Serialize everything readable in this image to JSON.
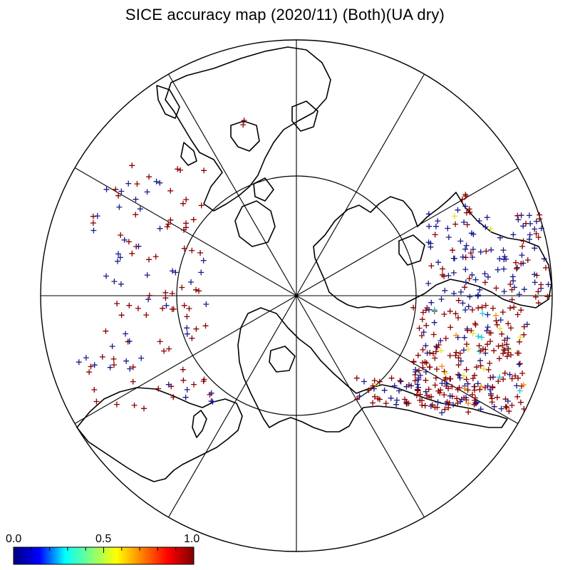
{
  "title": "SICE accuracy map (2020/11) (Both)(UA dry)",
  "colorbar": {
    "min_label": "0.0",
    "mid_label": "0.5",
    "max_label": "1.0",
    "stops": [
      "#00007f",
      "#0000ff",
      "#00ffff",
      "#7fff7f",
      "#ffff00",
      "#ff7f00",
      "#ff0000",
      "#7f0000"
    ]
  },
  "map": {
    "projection": "north-polar-stereographic",
    "meridian_lines": 12,
    "latitude_circles": 2
  },
  "colors": {
    "coast": "#000000",
    "grid": "#000000"
  }
}
